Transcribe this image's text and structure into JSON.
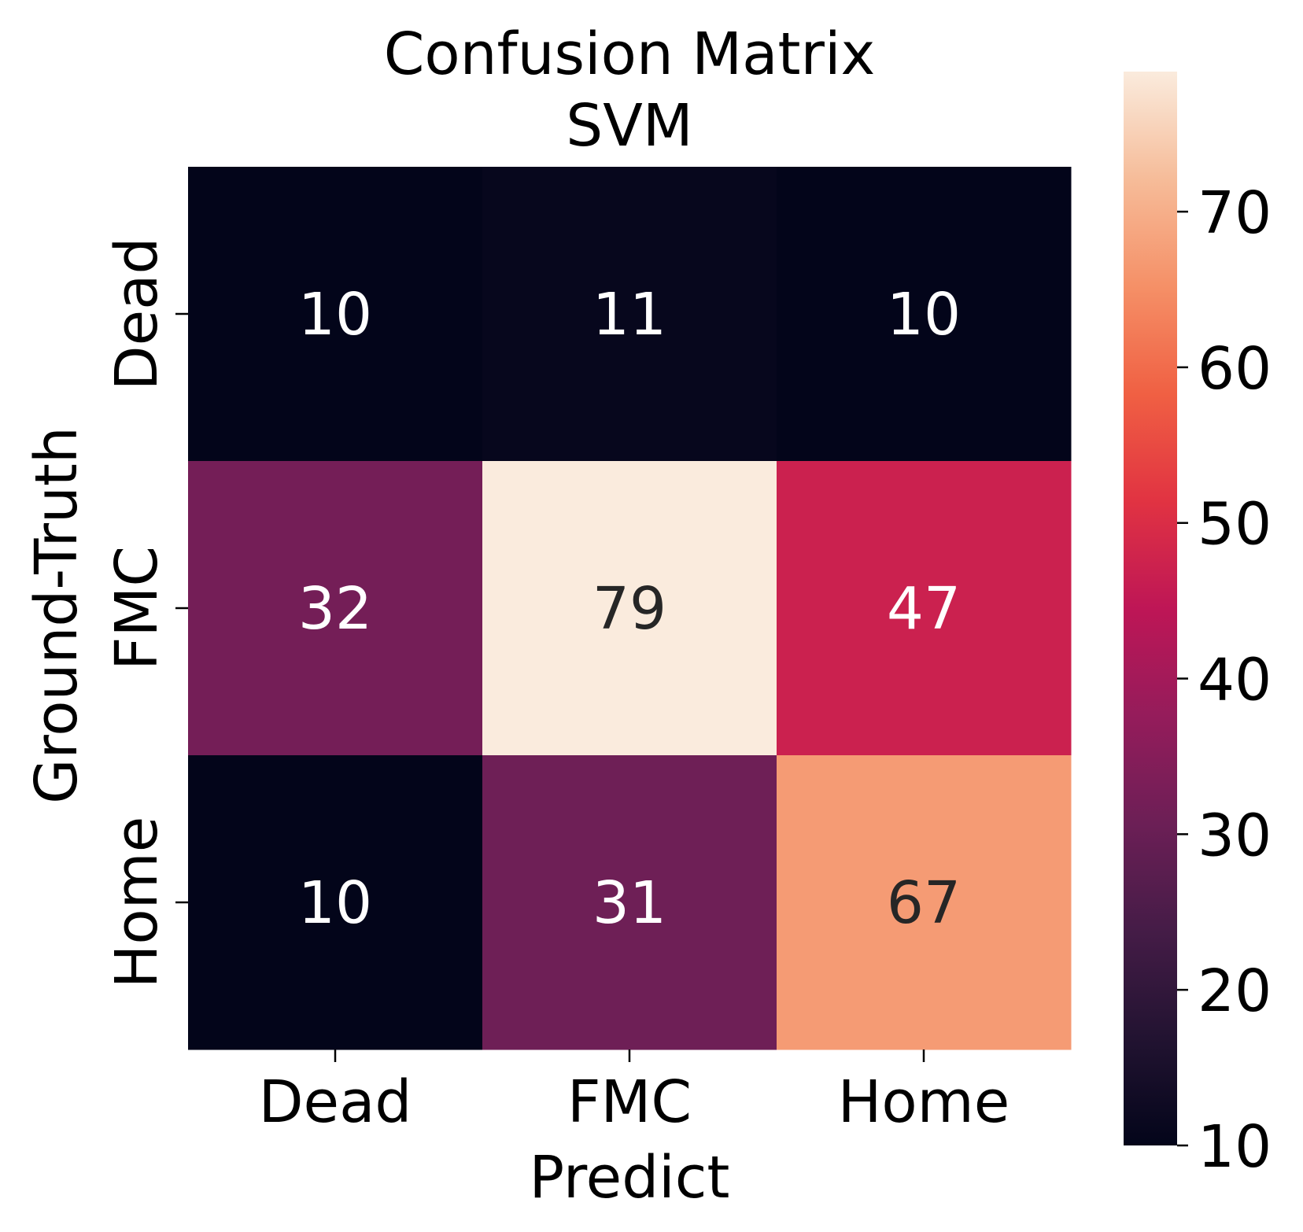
{
  "chart_data": {
    "type": "heatmap",
    "title": "Confusion Matrix",
    "subtitle": "SVM",
    "xlabel": "Predict",
    "ylabel": "Ground-Truth",
    "x_categories": [
      "Dead",
      "FMC",
      "Home"
    ],
    "y_categories": [
      "Dead",
      "FMC",
      "Home"
    ],
    "values": [
      [
        10,
        11,
        10
      ],
      [
        32,
        79,
        47
      ],
      [
        10,
        31,
        67
      ]
    ],
    "colorbar": {
      "range": [
        10,
        79
      ],
      "ticks": [
        "10",
        "20",
        "30",
        "40",
        "50",
        "60",
        "70"
      ],
      "colormap": "rocket",
      "position": "right"
    },
    "annotated": true,
    "grid": false,
    "legend": "none"
  }
}
